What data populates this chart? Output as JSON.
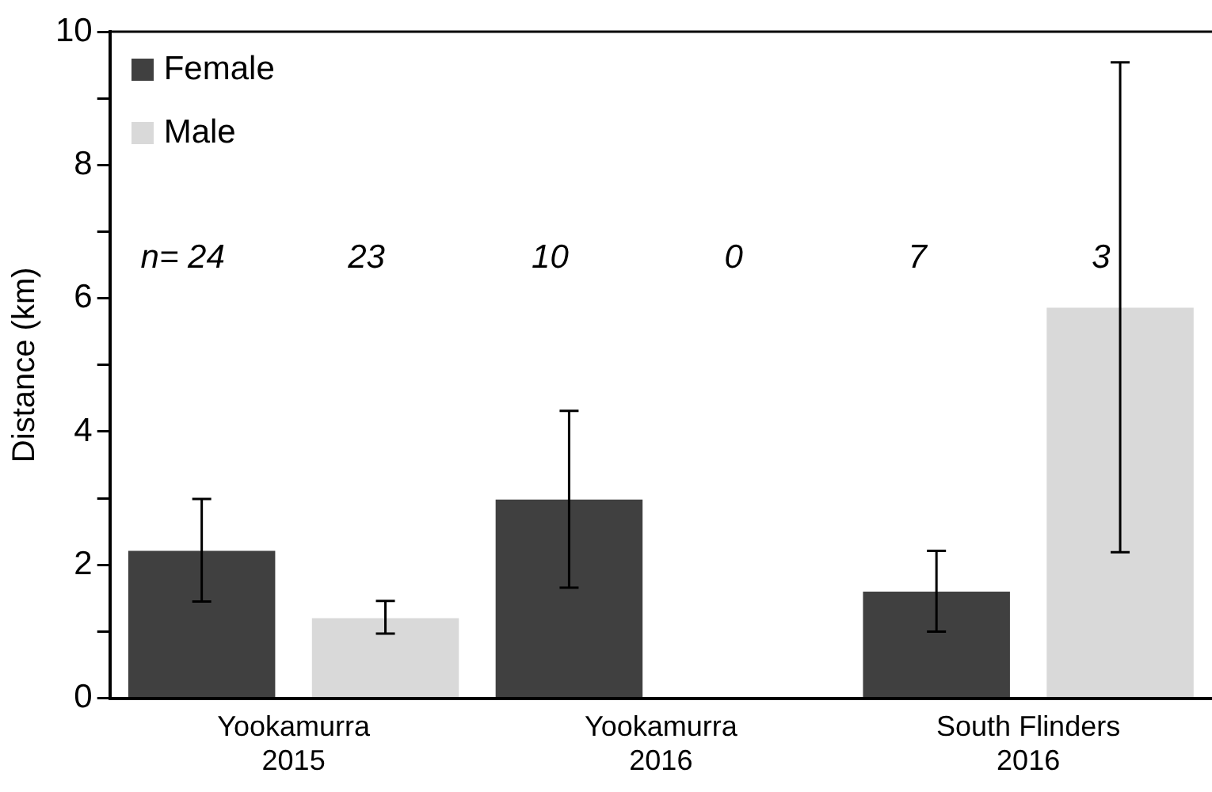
{
  "chart_data": {
    "type": "bar",
    "ylabel": "Distance (km)",
    "categories": [
      "Yookamurra\n2015",
      "Yookamurra\n2016",
      "South Flinders\n2016"
    ],
    "series": [
      {
        "name": "Female",
        "color": "#404040",
        "values": [
          2.21,
          2.98,
          1.6
        ],
        "errors": [
          [
            1.45,
            2.99
          ],
          [
            1.66,
            4.31
          ],
          [
            1.0,
            2.21
          ]
        ]
      },
      {
        "name": "Male",
        "color": "#d9d9d9",
        "values": [
          1.2,
          0,
          5.86
        ],
        "errors": [
          [
            0.97,
            1.46
          ],
          null,
          [
            2.19,
            9.54
          ]
        ]
      }
    ],
    "annotations": [
      "n= 24",
      "23",
      "10",
      "0",
      "7",
      "3"
    ],
    "ylim": [
      0,
      10
    ],
    "yticks": [
      0,
      {
        "value": 1,
        "label": null
      },
      2,
      {
        "value": 3,
        "label": null
      },
      4,
      {
        "value": 5,
        "label": null
      },
      6,
      {
        "value": 7,
        "label": null
      },
      8,
      {
        "value": 9,
        "label": null
      },
      10
    ],
    "grid": false,
    "legend": "top left"
  }
}
